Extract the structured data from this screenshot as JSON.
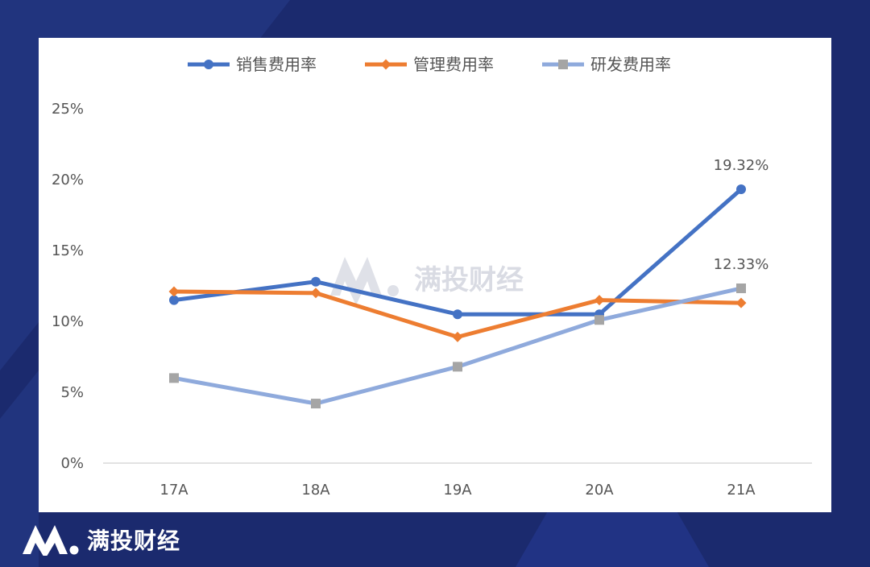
{
  "brand": {
    "name": "满投财经",
    "watermark": "满投财经"
  },
  "colors": {
    "background": "#1b2a6e",
    "card": "#ffffff"
  },
  "chart_data": {
    "type": "line",
    "categories": [
      "17A",
      "18A",
      "19A",
      "20A",
      "21A"
    ],
    "ylim": [
      0,
      25
    ],
    "y_ticks": [
      "0%",
      "5%",
      "10%",
      "15%",
      "20%",
      "25%"
    ],
    "y_tick_values": [
      0,
      5,
      10,
      15,
      20,
      25
    ],
    "grid": false,
    "legend_position": "top",
    "series": [
      {
        "name": "销售费用率",
        "color": "#4472c4",
        "marker": "circle",
        "values": [
          11.5,
          12.8,
          10.5,
          10.5,
          19.32
        ]
      },
      {
        "name": "管理费用率",
        "color": "#ed7d31",
        "marker": "diamond",
        "values": [
          12.1,
          12.0,
          8.9,
          11.5,
          11.3
        ]
      },
      {
        "name": "研发费用率",
        "color": "#8faadc",
        "marker": "square",
        "values": [
          6.0,
          4.2,
          6.8,
          10.1,
          12.33
        ]
      }
    ],
    "data_labels": [
      {
        "series": 0,
        "index": 4,
        "text": "19.32%"
      },
      {
        "series": 2,
        "index": 4,
        "text": "12.33%"
      }
    ]
  }
}
